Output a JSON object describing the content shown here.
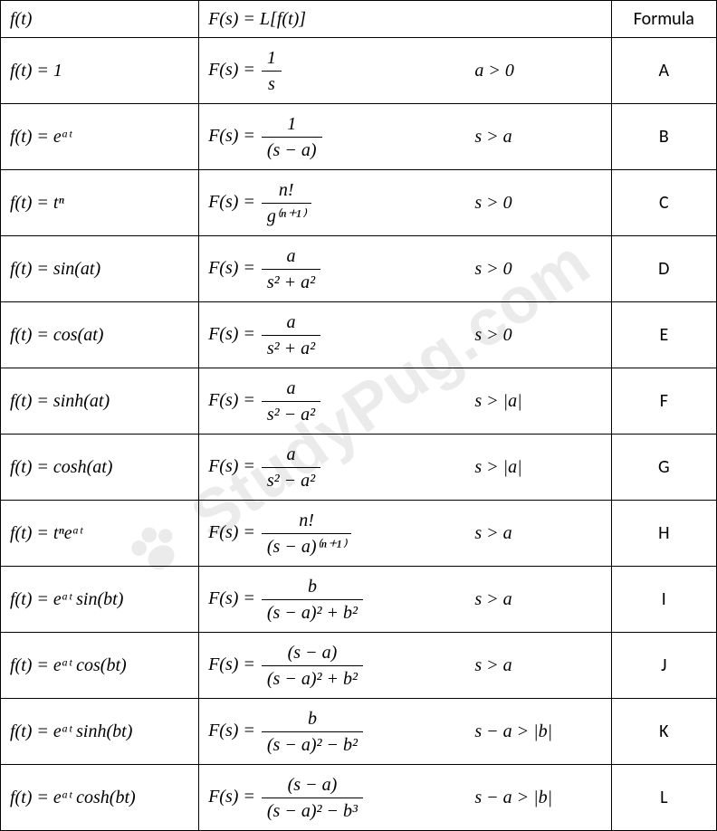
{
  "table": {
    "border_color": "#000000",
    "background_color": "#ffffff",
    "font_color": "#000000",
    "watermark_color": "rgba(0,0,0,0.08)",
    "header": {
      "c1": "f(t)",
      "c2": "F(s) = ℒ[f(t)]",
      "c3": "",
      "c4": "Formula"
    },
    "rows": [
      {
        "ft": "f(t) = 1",
        "fs_prefix": "F(s) = ",
        "num": "1",
        "den": "s",
        "cond": "a > 0",
        "formula": "A"
      },
      {
        "ft": "f(t) = eᵃᵗ",
        "fs_prefix": "F(s) = ",
        "num": "1",
        "den": "(s − a)",
        "cond": "s > a",
        "formula": "B"
      },
      {
        "ft": "f(t) = tⁿ",
        "fs_prefix": "F(s) = ",
        "num": "n!",
        "den": "g⁽ⁿ⁺¹⁾",
        "cond": "s > 0",
        "formula": "C"
      },
      {
        "ft": "f(t) = sin(at)",
        "fs_prefix": "F(s) = ",
        "num": "a",
        "den": "s² + a²",
        "cond": "s > 0",
        "formula": "D"
      },
      {
        "ft": "f(t) = cos(at)",
        "fs_prefix": "F(s) = ",
        "num": "a",
        "den": "s² + a²",
        "cond": "s > 0",
        "formula": "E"
      },
      {
        "ft": "f(t) = sinh(at)",
        "fs_prefix": "F(s) = ",
        "num": "a",
        "den": "s² − a²",
        "cond": "s > |a|",
        "formula": "F"
      },
      {
        "ft": "f(t) = cosh(at)",
        "fs_prefix": "F(s) = ",
        "num": "a",
        "den": "s² − a²",
        "cond": "s > |a|",
        "formula": "G"
      },
      {
        "ft": "f(t) = tⁿeᵃᵗ",
        "fs_prefix": "F(s) = ",
        "num": "n!",
        "den": "(s − a)⁽ⁿ⁺¹⁾",
        "cond": "s > a",
        "formula": "H"
      },
      {
        "ft": "f(t) = eᵃᵗ sin(bt)",
        "fs_prefix": "F(s) = ",
        "num": "b",
        "den": "(s − a)² + b²",
        "cond": "s > a",
        "formula": "I"
      },
      {
        "ft": "f(t) = eᵃᵗ cos(bt)",
        "fs_prefix": "F(s) = ",
        "num": "(s − a)",
        "den": "(s − a)² + b²",
        "cond": "s > a",
        "formula": "J"
      },
      {
        "ft": "f(t) = eᵃᵗ sinh(bt)",
        "fs_prefix": "F(s) = ",
        "num": "b",
        "den": "(s − a)² − b²",
        "cond": "s − a > |b|",
        "formula": "K"
      },
      {
        "ft": "f(t) = eᵃᵗ cosh(bt)",
        "fs_prefix": "F(s) = ",
        "num": "(s − a)",
        "den": "(s − a)² − b³",
        "cond": "s − a > |b|",
        "formula": "L"
      }
    ],
    "watermark_text": "StudyPug.com"
  }
}
